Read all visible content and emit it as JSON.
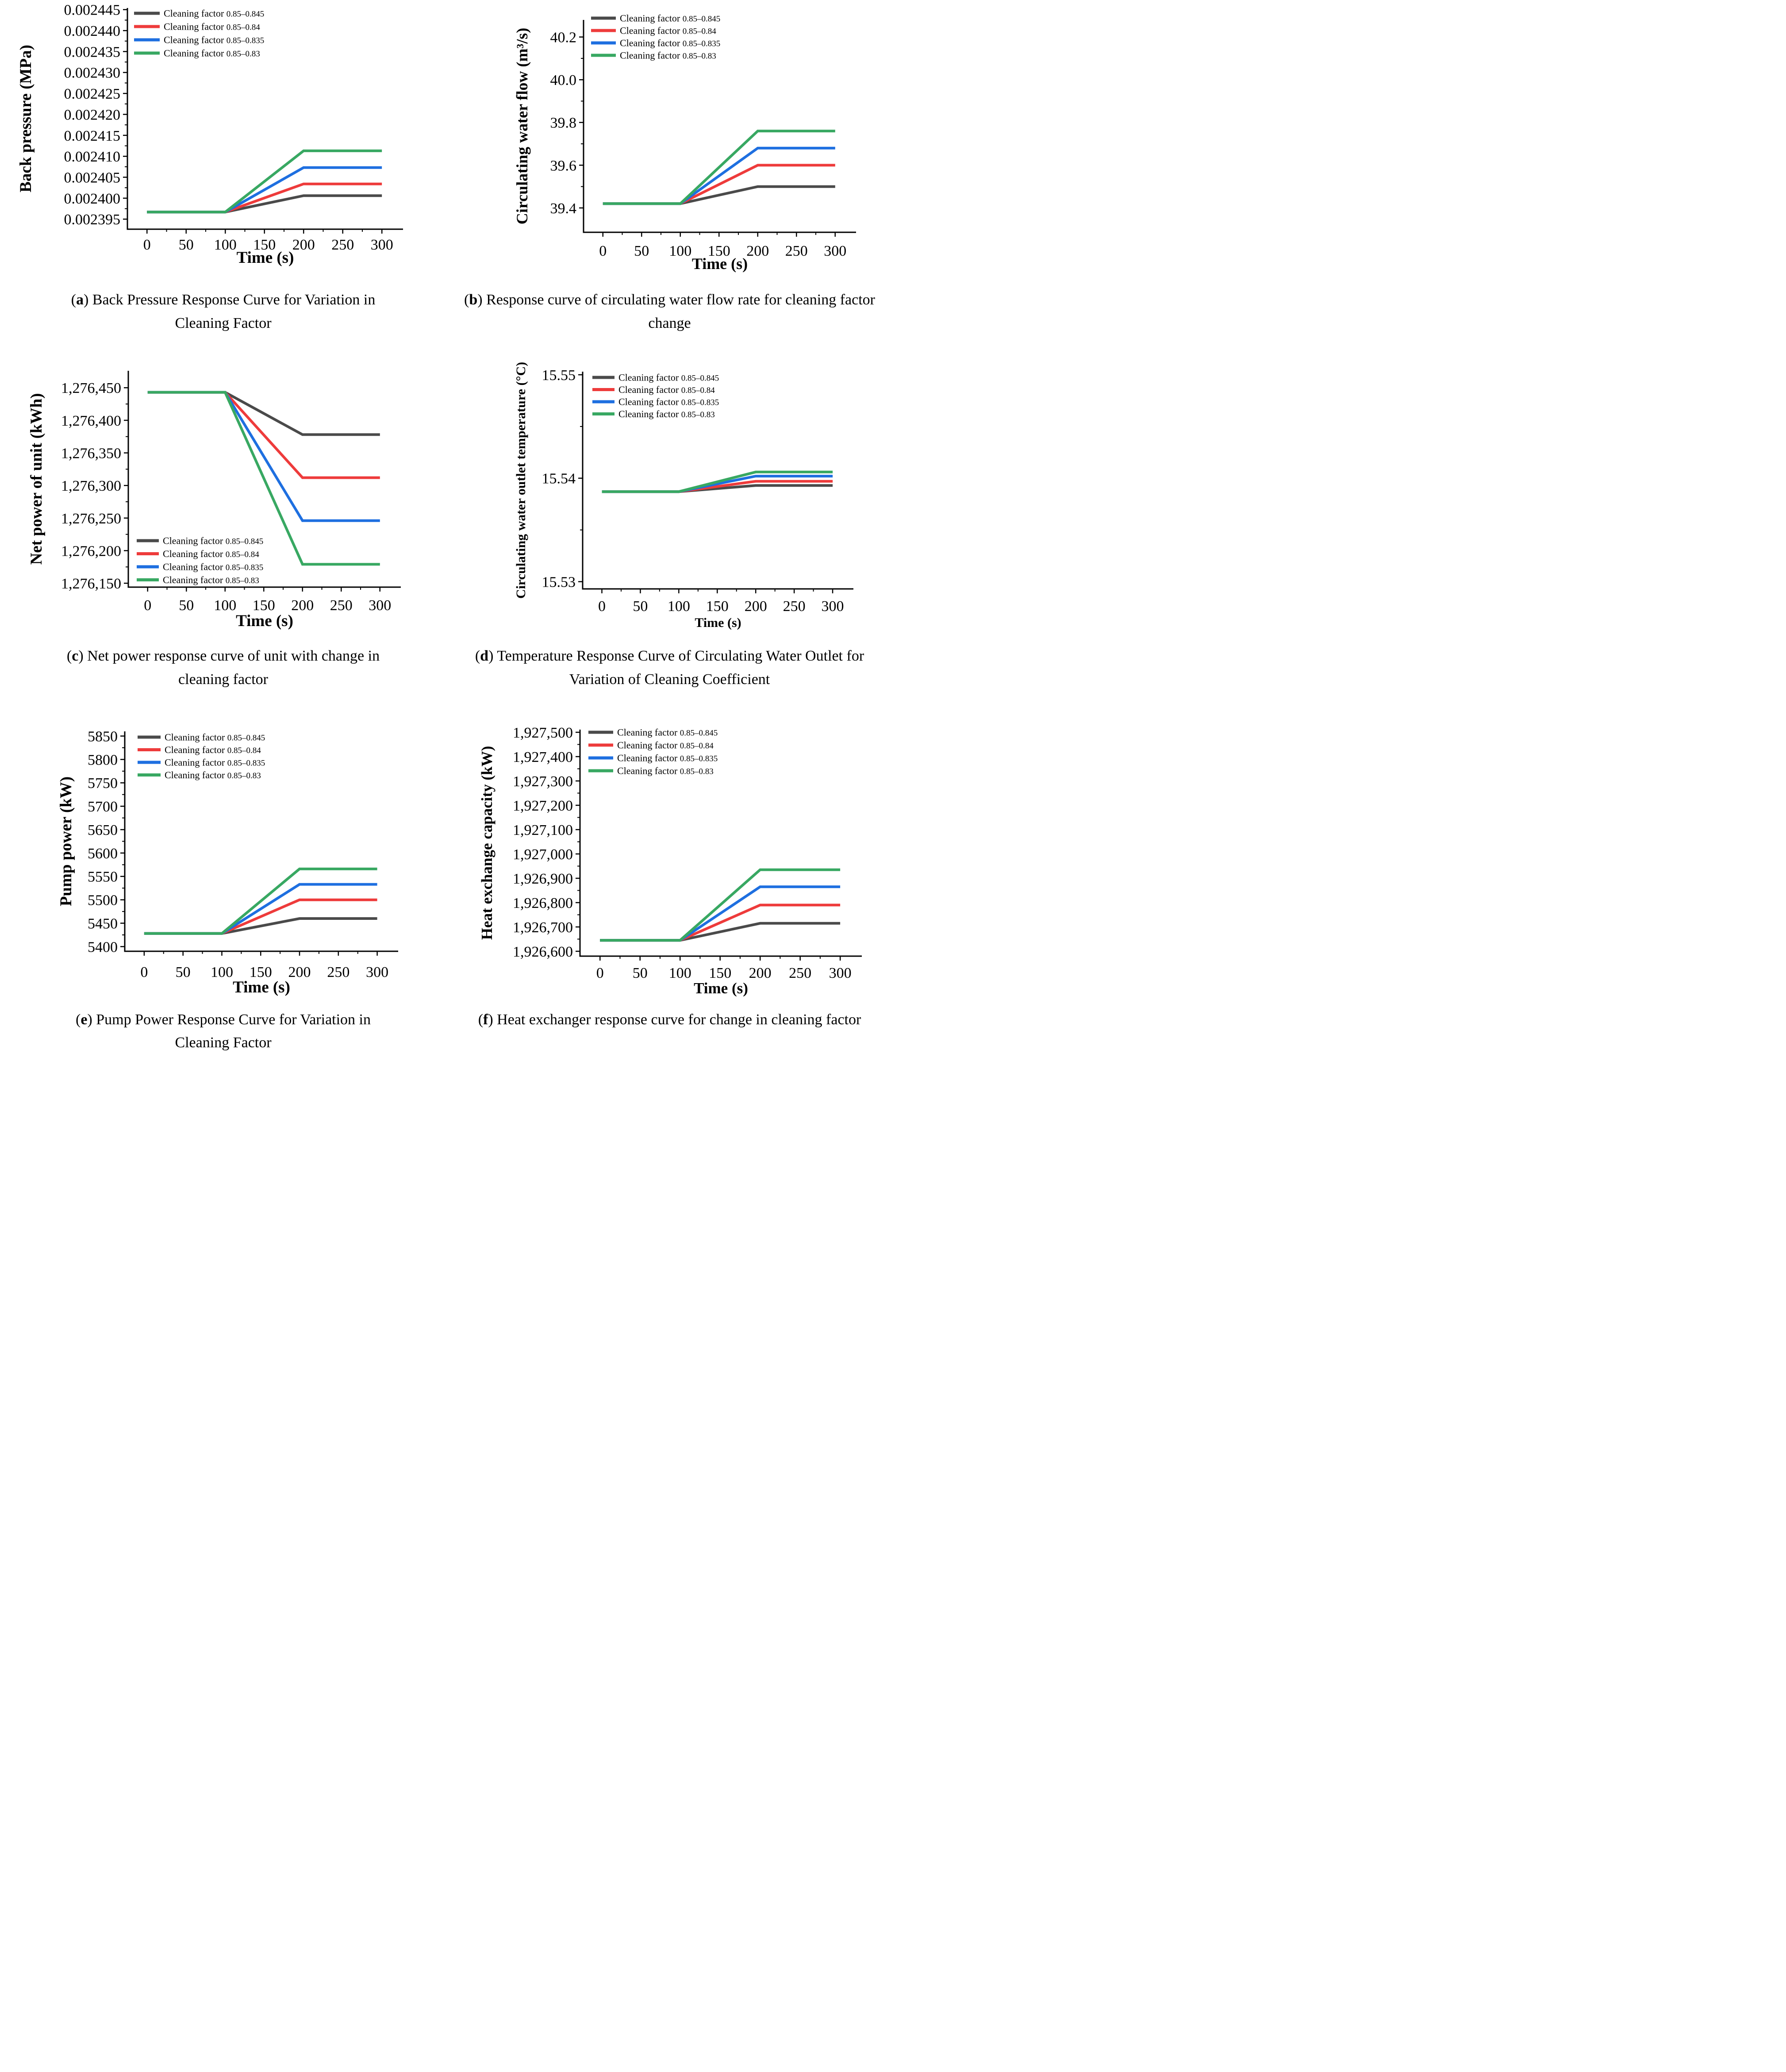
{
  "page": {
    "background": "#ffffff"
  },
  "chart_data": [
    {
      "id": "a",
      "type": "line",
      "caption": {
        "letter": "a",
        "text": "Back Pressure Response Curve for Variation in Cleaning Factor"
      },
      "xlabel": "Time (s)",
      "ylabel": "Back pressure (MPa)",
      "xlim": [
        -25,
        327
      ],
      "ylim": [
        0.0023926,
        0.0024454
      ],
      "xticks": [
        0,
        50,
        100,
        150,
        200,
        250,
        300
      ],
      "yticks": [
        {
          "v": 0.002395,
          "label": "0.002395"
        },
        {
          "v": 0.0024,
          "label": "0.002400"
        },
        {
          "v": 0.002405,
          "label": "0.002405"
        },
        {
          "v": 0.00241,
          "label": "0.002410"
        },
        {
          "v": 0.002415,
          "label": "0.002415"
        },
        {
          "v": 0.00242,
          "label": "0.002420"
        },
        {
          "v": 0.002425,
          "label": "0.002425"
        },
        {
          "v": 0.00243,
          "label": "0.002430"
        },
        {
          "v": 0.002435,
          "label": "0.002435"
        },
        {
          "v": 0.00244,
          "label": "0.002440"
        },
        {
          "v": 0.002445,
          "label": "0.002445"
        }
      ],
      "x": [
        0,
        100,
        200,
        300
      ],
      "series": [
        {
          "prefix": "Cleaning factor",
          "range": "0.85–0.845",
          "color": "#4a4a4a",
          "values": [
            0.0023967,
            0.0023967,
            0.0024006,
            0.0024006
          ]
        },
        {
          "prefix": "Cleaning factor",
          "range": "0.85–0.84",
          "color": "#ee3b3b",
          "values": [
            0.0023967,
            0.0023967,
            0.0024034,
            0.0024034
          ]
        },
        {
          "prefix": "Cleaning factor",
          "range": "0.85–0.835",
          "color": "#1e6fe0",
          "values": [
            0.0023967,
            0.0023967,
            0.0024073,
            0.0024073
          ]
        },
        {
          "prefix": "Cleaning factor",
          "range": "0.85–0.83",
          "color": "#38a862",
          "values": [
            0.0023967,
            0.0023967,
            0.0024113,
            0.0024113
          ]
        }
      ],
      "legend_position": "top-left-inside"
    },
    {
      "id": "b",
      "type": "line",
      "caption": {
        "letter": "b",
        "text": "Response curve of circulating water flow rate for cleaning factor change"
      },
      "xlabel": "Time (s)",
      "ylabel": "Circulating water flow (m³/s)",
      "xlim": [
        -25,
        327
      ],
      "ylim": [
        39.286,
        40.28
      ],
      "xticks": [
        0,
        50,
        100,
        150,
        200,
        250,
        300
      ],
      "yticks": [
        {
          "v": 39.4,
          "label": "39.4"
        },
        {
          "v": 39.6,
          "label": "39.6"
        },
        {
          "v": 39.8,
          "label": "39.8"
        },
        {
          "v": 40.0,
          "label": "40.0"
        },
        {
          "v": 40.2,
          "label": "40.2"
        }
      ],
      "x": [
        0,
        100,
        200,
        300
      ],
      "series": [
        {
          "prefix": "Cleaning factor",
          "range": "0.85–0.845",
          "color": "#4a4a4a",
          "values": [
            39.42,
            39.42,
            39.5,
            39.5
          ]
        },
        {
          "prefix": "Cleaning factor",
          "range": "0.85–0.84",
          "color": "#ee3b3b",
          "values": [
            39.42,
            39.42,
            39.6,
            39.6
          ]
        },
        {
          "prefix": "Cleaning factor",
          "range": "0.85–0.835",
          "color": "#1e6fe0",
          "values": [
            39.42,
            39.42,
            39.68,
            39.68
          ]
        },
        {
          "prefix": "Cleaning factor",
          "range": "0.85–0.83",
          "color": "#38a862",
          "values": [
            39.42,
            39.42,
            39.76,
            39.76
          ]
        }
      ],
      "legend_position": "top-left-inside"
    },
    {
      "id": "c",
      "type": "line",
      "caption": {
        "letter": "c",
        "text": "Net power response curve of unit with change in cleaning factor"
      },
      "xlabel": "Time (s)",
      "ylabel": "Net power of unit (kWh)",
      "xlim": [
        -25,
        327
      ],
      "ylim": [
        1276144,
        1276476
      ],
      "xticks": [
        0,
        50,
        100,
        150,
        200,
        250,
        300
      ],
      "yticks": [
        {
          "v": 1276150,
          "label": "1,276,150"
        },
        {
          "v": 1276200,
          "label": "1,276,200"
        },
        {
          "v": 1276250,
          "label": "1,276,250"
        },
        {
          "v": 1276300,
          "label": "1,276,300"
        },
        {
          "v": 1276350,
          "label": "1,276,350"
        },
        {
          "v": 1276400,
          "label": "1,276,400"
        },
        {
          "v": 1276450,
          "label": "1,276,450"
        }
      ],
      "x": [
        0,
        100,
        200,
        300
      ],
      "series": [
        {
          "prefix": "Cleaning factor",
          "range": "0.85–0.845",
          "color": "#4a4a4a",
          "values": [
            1276443,
            1276443,
            1276378,
            1276378
          ]
        },
        {
          "prefix": "Cleaning factor",
          "range": "0.85–0.84",
          "color": "#ee3b3b",
          "values": [
            1276443,
            1276443,
            1276312,
            1276312
          ]
        },
        {
          "prefix": "Cleaning factor",
          "range": "0.85–0.835",
          "color": "#1e6fe0",
          "values": [
            1276443,
            1276443,
            1276246,
            1276246
          ]
        },
        {
          "prefix": "Cleaning factor",
          "range": "0.85–0.83",
          "color": "#38a862",
          "values": [
            1276443,
            1276443,
            1276179,
            1276179
          ]
        }
      ],
      "legend_position": "bottom-left-inside"
    },
    {
      "id": "d",
      "type": "line",
      "caption": {
        "letter": "d",
        "text": "Temperature Response Curve of Circulating Water Outlet for Variation of Cleaning Coefficient"
      },
      "xlabel": "Time (s)",
      "ylabel": "Circulating water outlet temperature (°C)",
      "xlim": [
        -25,
        327
      ],
      "ylim": [
        15.5293,
        15.5503
      ],
      "xticks": [
        0,
        50,
        100,
        150,
        200,
        250,
        300
      ],
      "yticks": [
        {
          "v": 15.53,
          "label": "15.53"
        },
        {
          "v": 15.54,
          "label": "15.54"
        },
        {
          "v": 15.55,
          "label": "15.55"
        }
      ],
      "x": [
        0,
        100,
        200,
        300
      ],
      "series": [
        {
          "prefix": "Cleaning factor",
          "range": "0.85–0.845",
          "color": "#4a4a4a",
          "values": [
            15.5387,
            15.5387,
            15.5393,
            15.5393
          ]
        },
        {
          "prefix": "Cleaning factor",
          "range": "0.85–0.84",
          "color": "#ee3b3b",
          "values": [
            15.5387,
            15.5387,
            15.5397,
            15.5397
          ]
        },
        {
          "prefix": "Cleaning factor",
          "range": "0.85–0.835",
          "color": "#1e6fe0",
          "values": [
            15.5387,
            15.5387,
            15.5402,
            15.5402
          ]
        },
        {
          "prefix": "Cleaning factor",
          "range": "0.85–0.83",
          "color": "#38a862",
          "values": [
            15.5387,
            15.5387,
            15.5406,
            15.5406
          ]
        }
      ],
      "legend_position": "top-left-inside"
    },
    {
      "id": "e",
      "type": "line",
      "caption": {
        "letter": "e",
        "text": "Pump Power Response Curve for Variation in Cleaning Factor"
      },
      "xlabel": "Time (s)",
      "ylabel": "Pump power (kW)",
      "xlim": [
        -25,
        327
      ],
      "ylim": [
        5390,
        5860
      ],
      "xticks": [
        0,
        50,
        100,
        150,
        200,
        250,
        300
      ],
      "yticks": [
        {
          "v": 5400,
          "label": "5400"
        },
        {
          "v": 5450,
          "label": "5450"
        },
        {
          "v": 5500,
          "label": "5500"
        },
        {
          "v": 5550,
          "label": "5550"
        },
        {
          "v": 5600,
          "label": "5600"
        },
        {
          "v": 5650,
          "label": "5650"
        },
        {
          "v": 5700,
          "label": "5700"
        },
        {
          "v": 5750,
          "label": "5750"
        },
        {
          "v": 5800,
          "label": "5800"
        },
        {
          "v": 5850,
          "label": "5850"
        }
      ],
      "x": [
        0,
        100,
        200,
        300
      ],
      "series": [
        {
          "prefix": "Cleaning factor",
          "range": "0.85–0.845",
          "color": "#4a4a4a",
          "values": [
            5428,
            5428,
            5460,
            5460
          ]
        },
        {
          "prefix": "Cleaning factor",
          "range": "0.85–0.84",
          "color": "#ee3b3b",
          "values": [
            5428,
            5428,
            5500,
            5500
          ]
        },
        {
          "prefix": "Cleaning factor",
          "range": "0.85–0.835",
          "color": "#1e6fe0",
          "values": [
            5428,
            5428,
            5533,
            5533
          ]
        },
        {
          "prefix": "Cleaning factor",
          "range": "0.85–0.83",
          "color": "#38a862",
          "values": [
            5428,
            5428,
            5566,
            5566
          ]
        }
      ],
      "legend_position": "top-left-inside"
    },
    {
      "id": "f",
      "type": "line",
      "caption": {
        "letter": "f",
        "text": "Heat exchanger response curve for change in cleaning factor"
      },
      "xlabel": "Time (s)",
      "ylabel": "Heat exchange capacity (kW)",
      "xlim": [
        -25,
        327
      ],
      "ylim": [
        1926580,
        1927511
      ],
      "xticks": [
        0,
        50,
        100,
        150,
        200,
        250,
        300
      ],
      "yticks": [
        {
          "v": 1926600,
          "label": "1,926,600"
        },
        {
          "v": 1926700,
          "label": "1,926,700"
        },
        {
          "v": 1926800,
          "label": "1,926,800"
        },
        {
          "v": 1926900,
          "label": "1,926,900"
        },
        {
          "v": 1927000,
          "label": "1,927,000"
        },
        {
          "v": 1927100,
          "label": "1,927,100"
        },
        {
          "v": 1927200,
          "label": "1,927,200"
        },
        {
          "v": 1927300,
          "label": "1,927,300"
        },
        {
          "v": 1927400,
          "label": "1,927,400"
        },
        {
          "v": 1927500,
          "label": "1,927,500"
        }
      ],
      "x": [
        0,
        100,
        200,
        300
      ],
      "series": [
        {
          "prefix": "Cleaning factor",
          "range": "0.85–0.845",
          "color": "#4a4a4a",
          "values": [
            1926645,
            1926645,
            1926715,
            1926715
          ]
        },
        {
          "prefix": "Cleaning factor",
          "range": "0.85–0.84",
          "color": "#ee3b3b",
          "values": [
            1926645,
            1926645,
            1926790,
            1926790
          ]
        },
        {
          "prefix": "Cleaning factor",
          "range": "0.85–0.835",
          "color": "#1e6fe0",
          "values": [
            1926645,
            1926645,
            1926865,
            1926865
          ]
        },
        {
          "prefix": "Cleaning factor",
          "range": "0.85–0.83",
          "color": "#38a862",
          "values": [
            1926645,
            1926645,
            1926935,
            1926935
          ]
        }
      ],
      "legend_position": "top-left-inside"
    }
  ]
}
